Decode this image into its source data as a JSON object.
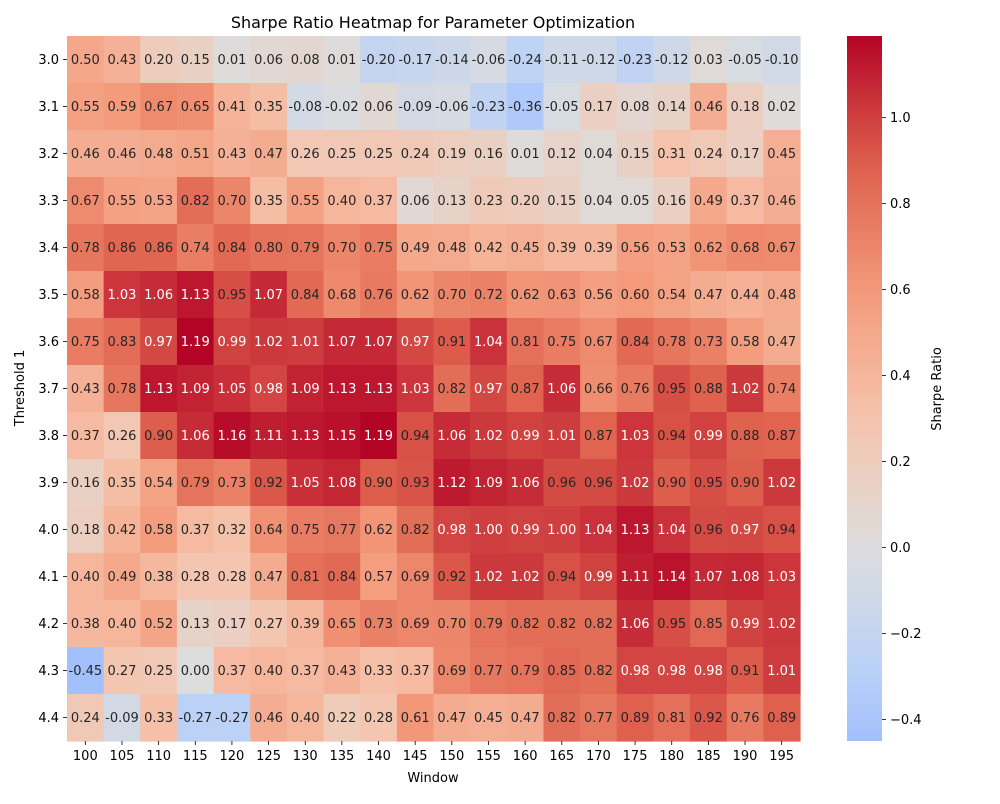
{
  "chart_data": {
    "type": "heatmap",
    "title": "Sharpe Ratio Heatmap for Parameter Optimization",
    "xlabel": "Window",
    "ylabel": "Threshold 1",
    "colorbar_label": "Sharpe Ratio",
    "colormap": "coolwarm",
    "center": 0,
    "vmin": -0.45,
    "vmax": 1.19,
    "colorbar_ticks": [
      "-0.4",
      "-0.2",
      "0.0",
      "0.2",
      "0.4",
      "0.6",
      "0.8",
      "1.0"
    ],
    "x": [
      "100",
      "105",
      "110",
      "115",
      "120",
      "125",
      "130",
      "135",
      "140",
      "145",
      "150",
      "155",
      "160",
      "165",
      "170",
      "175",
      "180",
      "185",
      "190",
      "195"
    ],
    "y": [
      "3.0",
      "3.1",
      "3.2",
      "3.3",
      "3.4",
      "3.5",
      "3.6",
      "3.7",
      "3.8",
      "3.9",
      "4.0",
      "4.1",
      "4.2",
      "4.3",
      "4.4"
    ],
    "values": [
      [
        0.5,
        0.43,
        0.2,
        0.15,
        0.01,
        0.06,
        0.08,
        0.01,
        -0.2,
        -0.17,
        -0.14,
        -0.06,
        -0.24,
        -0.11,
        -0.12,
        -0.23,
        -0.12,
        0.03,
        -0.05,
        -0.1
      ],
      [
        0.55,
        0.59,
        0.67,
        0.65,
        0.41,
        0.35,
        -0.08,
        -0.02,
        0.06,
        -0.09,
        -0.06,
        -0.23,
        -0.36,
        -0.05,
        0.17,
        0.08,
        0.14,
        0.46,
        0.18,
        0.02
      ],
      [
        0.46,
        0.46,
        0.48,
        0.51,
        0.43,
        0.47,
        0.26,
        0.25,
        0.25,
        0.24,
        0.19,
        0.16,
        0.01,
        0.12,
        0.04,
        0.15,
        0.31,
        0.24,
        0.17,
        0.45
      ],
      [
        0.67,
        0.55,
        0.53,
        0.82,
        0.7,
        0.35,
        0.55,
        0.4,
        0.37,
        0.06,
        0.13,
        0.23,
        0.2,
        0.15,
        0.04,
        0.05,
        0.16,
        0.49,
        0.37,
        0.46
      ],
      [
        0.78,
        0.86,
        0.86,
        0.74,
        0.84,
        0.8,
        0.79,
        0.7,
        0.75,
        0.49,
        0.48,
        0.42,
        0.45,
        0.39,
        0.39,
        0.56,
        0.53,
        0.62,
        0.68,
        0.67
      ],
      [
        0.58,
        1.03,
        1.06,
        1.13,
        0.95,
        1.07,
        0.84,
        0.68,
        0.76,
        0.62,
        0.7,
        0.72,
        0.62,
        0.63,
        0.56,
        0.6,
        0.54,
        0.47,
        0.44,
        0.48
      ],
      [
        0.75,
        0.83,
        0.97,
        1.19,
        0.99,
        1.02,
        1.01,
        1.07,
        1.07,
        0.97,
        0.91,
        1.04,
        0.81,
        0.75,
        0.67,
        0.84,
        0.78,
        0.73,
        0.58,
        0.47
      ],
      [
        0.43,
        0.78,
        1.13,
        1.09,
        1.05,
        0.98,
        1.09,
        1.13,
        1.13,
        1.03,
        0.82,
        0.97,
        0.87,
        1.06,
        0.66,
        0.76,
        0.95,
        0.88,
        1.02,
        0.74
      ],
      [
        0.37,
        0.26,
        0.9,
        1.06,
        1.16,
        1.11,
        1.13,
        1.15,
        1.19,
        0.94,
        1.06,
        1.02,
        0.99,
        1.01,
        0.87,
        1.03,
        0.94,
        0.99,
        0.88,
        0.87
      ],
      [
        0.16,
        0.35,
        0.54,
        0.79,
        0.73,
        0.92,
        1.05,
        1.08,
        0.9,
        0.93,
        1.12,
        1.09,
        1.06,
        0.96,
        0.96,
        1.02,
        0.9,
        0.95,
        0.9,
        1.02
      ],
      [
        0.18,
        0.42,
        0.58,
        0.37,
        0.32,
        0.64,
        0.75,
        0.77,
        0.62,
        0.82,
        0.98,
        1.0,
        0.99,
        1.0,
        1.04,
        1.13,
        1.04,
        0.96,
        0.97,
        0.94
      ],
      [
        0.4,
        0.49,
        0.38,
        0.28,
        0.28,
        0.47,
        0.81,
        0.84,
        0.57,
        0.69,
        0.92,
        1.02,
        1.02,
        0.94,
        0.99,
        1.11,
        1.14,
        1.07,
        1.08,
        1.03
      ],
      [
        0.38,
        0.4,
        0.52,
        0.13,
        0.17,
        0.27,
        0.39,
        0.65,
        0.73,
        0.69,
        0.7,
        0.79,
        0.82,
        0.82,
        0.82,
        1.06,
        0.95,
        0.85,
        0.99,
        1.02
      ],
      [
        -0.45,
        0.27,
        0.25,
        0.0,
        0.37,
        0.4,
        0.37,
        0.43,
        0.33,
        0.37,
        0.69,
        0.77,
        0.79,
        0.85,
        0.82,
        0.98,
        0.98,
        0.98,
        0.91,
        1.01
      ],
      [
        0.24,
        -0.09,
        0.33,
        -0.27,
        -0.27,
        0.46,
        0.4,
        0.22,
        0.28,
        0.61,
        0.47,
        0.45,
        0.47,
        0.82,
        0.77,
        0.89,
        0.81,
        0.92,
        0.76,
        0.89
      ]
    ]
  }
}
